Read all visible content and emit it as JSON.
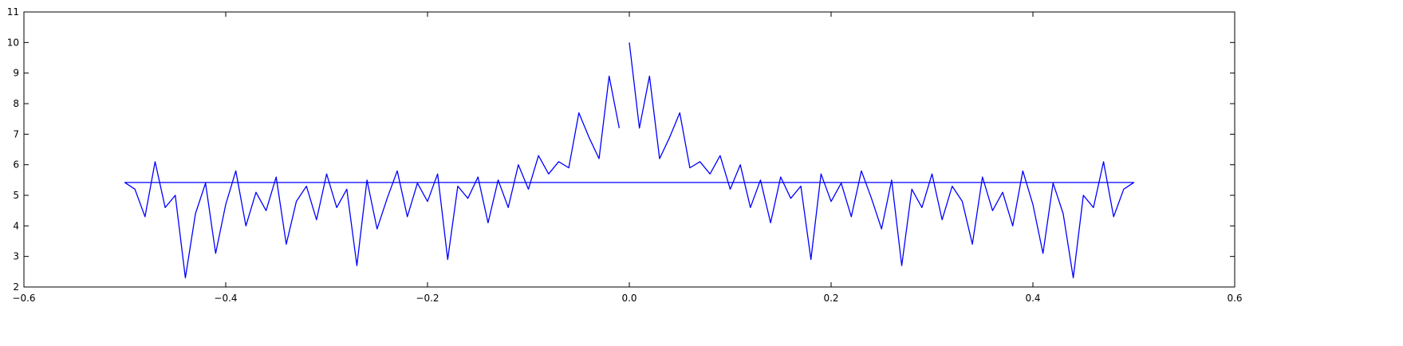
{
  "chart_data": {
    "type": "line",
    "x": [
      0,
      0.01,
      0.02,
      0.03,
      0.04,
      0.05,
      0.06,
      0.07,
      0.08,
      0.09,
      0.1,
      0.11,
      0.12,
      0.13,
      0.14,
      0.15,
      0.16,
      0.17,
      0.18,
      0.19,
      0.2,
      0.21,
      0.22,
      0.23,
      0.24,
      0.25,
      0.26,
      0.27,
      0.28,
      0.29,
      0.3,
      0.31,
      0.32,
      0.33,
      0.34,
      0.35,
      0.36,
      0.37,
      0.38,
      0.39,
      0.4,
      0.41,
      0.42,
      0.43,
      0.44,
      0.45,
      0.46,
      0.47,
      0.48,
      0.49,
      0.5,
      -0.5,
      -0.49,
      -0.48,
      -0.47,
      -0.46,
      -0.45,
      -0.44,
      -0.43,
      -0.42,
      -0.41,
      -0.4,
      -0.39,
      -0.38,
      -0.37,
      -0.36,
      -0.35,
      -0.34,
      -0.33,
      -0.32,
      -0.31,
      -0.3,
      -0.29,
      -0.28,
      -0.27,
      -0.26,
      -0.25,
      -0.24,
      -0.23,
      -0.22,
      -0.21,
      -0.2,
      -0.19,
      -0.18,
      -0.17,
      -0.16,
      -0.15,
      -0.14,
      -0.13,
      -0.12,
      -0.11,
      -0.1,
      -0.09,
      -0.08,
      -0.07,
      -0.06,
      -0.05,
      -0.04,
      -0.03,
      -0.02,
      -0.01
    ],
    "series": [
      {
        "color": "#0000ff",
        "values": [
          10.0,
          7.2,
          8.9,
          6.2,
          6.9,
          7.7,
          5.9,
          6.1,
          5.7,
          6.3,
          5.2,
          6.0,
          4.6,
          5.5,
          4.1,
          5.6,
          4.9,
          5.3,
          2.9,
          5.7,
          4.8,
          5.4,
          4.3,
          5.8,
          4.9,
          3.9,
          5.5,
          2.7,
          5.2,
          4.6,
          5.7,
          4.2,
          5.3,
          4.8,
          3.4,
          5.6,
          4.5,
          5.1,
          4.0,
          5.8,
          4.7,
          3.1,
          5.4,
          4.4,
          2.3,
          5.0,
          4.6,
          6.1,
          4.3,
          5.2,
          5.42,
          5.42,
          5.2,
          4.3,
          6.1,
          4.6,
          5.0,
          2.3,
          4.4,
          5.4,
          3.1,
          4.7,
          5.8,
          4.0,
          5.1,
          4.5,
          5.6,
          3.4,
          4.8,
          5.3,
          4.2,
          5.7,
          4.6,
          5.2,
          2.7,
          5.5,
          3.9,
          4.9,
          5.8,
          4.3,
          5.4,
          4.8,
          5.7,
          2.9,
          5.3,
          4.9,
          5.6,
          4.1,
          5.5,
          4.6,
          6.0,
          5.2,
          6.3,
          5.7,
          6.1,
          5.9,
          7.7,
          6.9,
          6.2,
          8.9,
          7.2
        ]
      }
    ],
    "xlim": [
      -0.6,
      0.6
    ],
    "xticks": [
      {
        "value": -0.6,
        "label": "−0.6"
      },
      {
        "value": -0.4,
        "label": "−0.4"
      },
      {
        "value": -0.2,
        "label": "−0.2"
      },
      {
        "value": 0,
        "label": "0.0"
      },
      0.2,
      0.4,
      0.6
    ],
    "ylim": [
      2,
      11
    ],
    "yticks": [
      2,
      3,
      4,
      5,
      6,
      7,
      8,
      9,
      10,
      11
    ]
  }
}
